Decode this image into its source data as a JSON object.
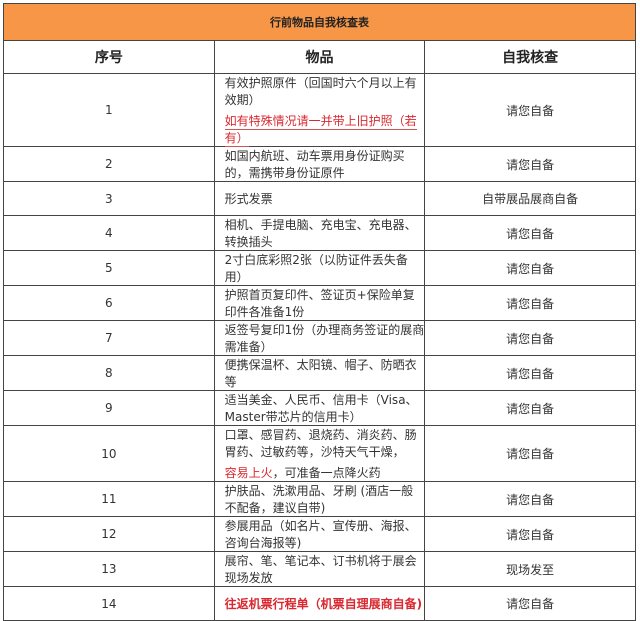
{
  "title": "行前物品自我核查表",
  "headers": {
    "no": "序号",
    "item": "物品",
    "check": "自我核查"
  },
  "accent_color": "#f79646",
  "highlight_color": "#d9282f",
  "rows": [
    {
      "no": "1",
      "item": "有效护照原件（回国时六个月以上有效期）",
      "note": "如有特殊情况请一并带上旧护照（若有）",
      "check": "请您自备"
    },
    {
      "no": "2",
      "item": "如国内航班、动车票用身份证购买的，需携带身份证原件",
      "check": "请您自备"
    },
    {
      "no": "3",
      "item": "形式发票",
      "check": "自带展品展商自备"
    },
    {
      "no": "4",
      "item": "相机、手提电脑、充电宝、充电器、转换插头",
      "check": "请您自备"
    },
    {
      "no": "5",
      "item": "2寸白底彩照2张（以防证件丢失备用）",
      "check": "请您自备"
    },
    {
      "no": "6",
      "item": "护照首页复印件、签证页+保险单复印件各准备1份",
      "check": "请您自备"
    },
    {
      "no": "7",
      "item": "返签号复印1份（办理商务签证的展商需准备）",
      "check": "请您自备"
    },
    {
      "no": "8",
      "item": "便携保温杯、太阳镜、帽子、防晒衣等",
      "check": "请您自备"
    },
    {
      "no": "9",
      "item": "适当美金、人民币、信用卡（Visa、Master带芯片的信用卡）",
      "check": "请您自备"
    },
    {
      "no": "10",
      "item": "口罩、感冒药、退烧药、消炎药、肠胃药、过敏药等，沙特天气干燥，",
      "note": "容易上火",
      "item_tail": "，可准备一点降火药",
      "check": "请您自备"
    },
    {
      "no": "11",
      "item": "护肤品、洗漱用品、牙刷 (酒店一般不配备，建议自带)",
      "check": "请您自备"
    },
    {
      "no": "12",
      "item": "参展用品（如名片、宣传册、海报、咨询台海报等)",
      "check": "请您自备"
    },
    {
      "no": "13",
      "item": "展帘、笔、笔记本、订书机将于展会现场发放",
      "check": "现场发至"
    },
    {
      "no": "14",
      "item": "往返机票行程单（机票自理展商自备)",
      "check": "请您自备"
    }
  ]
}
